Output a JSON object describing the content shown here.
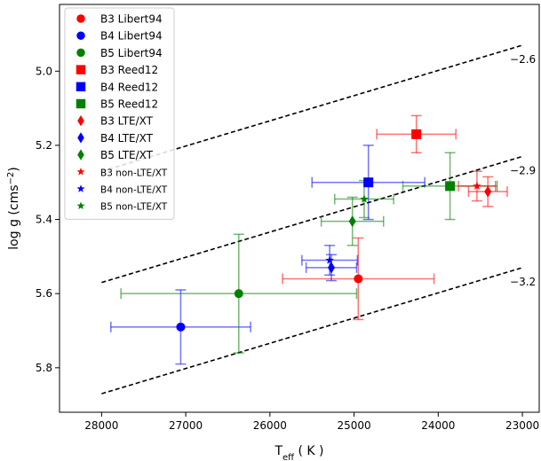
{
  "chart_data": {
    "type": "scatter",
    "xlabel": "T_eff ( K )",
    "ylabel": "log g (cms^-2)",
    "xlim": [
      28500,
      22800
    ],
    "ylim": [
      5.92,
      4.82
    ],
    "x_ticks": [
      28000,
      27000,
      26000,
      25000,
      24000,
      23000
    ],
    "y_ticks": [
      5.0,
      5.2,
      5.4,
      5.6,
      5.8
    ],
    "reverse_x": true,
    "reverse_y": true,
    "grid": false,
    "legend_position": "upper-left",
    "colors": {
      "B3": "#ff0000",
      "B4": "#0000ff",
      "B5": "#008000"
    },
    "series": [
      {
        "name": "B3 Libert94",
        "marker": "circle",
        "color": "#ff0000",
        "points": [
          {
            "x": 24950,
            "y": 5.56,
            "xerr": 900,
            "yerr": 0.11
          }
        ]
      },
      {
        "name": "B4 Libert94",
        "marker": "circle",
        "color": "#0000ff",
        "points": [
          {
            "x": 27060,
            "y": 5.69,
            "xerr": 830,
            "yerr": 0.1
          }
        ]
      },
      {
        "name": "B5 Libert94",
        "marker": "circle",
        "color": "#008000",
        "points": [
          {
            "x": 26370,
            "y": 5.6,
            "xerr": 1400,
            "yerr": 0.16
          }
        ]
      },
      {
        "name": "B3 Reed12",
        "marker": "square",
        "color": "#ff0000",
        "points": [
          {
            "x": 24260,
            "y": 5.17,
            "xerr": 470,
            "yerr": 0.05
          }
        ]
      },
      {
        "name": "B4 Reed12",
        "marker": "square",
        "color": "#0000ff",
        "points": [
          {
            "x": 24830,
            "y": 5.3,
            "xerr": 670,
            "yerr": 0.1
          }
        ]
      },
      {
        "name": "B5 Reed12",
        "marker": "square",
        "color": "#008000",
        "points": [
          {
            "x": 23860,
            "y": 5.31,
            "xerr": 560,
            "yerr": 0.09
          }
        ]
      },
      {
        "name": "B3 LTE/XT",
        "marker": "diamond",
        "color": "#ff0000",
        "points": [
          {
            "x": 23410,
            "y": 5.325,
            "xerr": 230,
            "yerr": 0.04
          }
        ]
      },
      {
        "name": "B4 LTE/XT",
        "marker": "diamond",
        "color": "#0000ff",
        "points": [
          {
            "x": 25270,
            "y": 5.53,
            "xerr": 300,
            "yerr": 0.035
          }
        ]
      },
      {
        "name": "B5 LTE/XT",
        "marker": "diamond",
        "color": "#008000",
        "points": [
          {
            "x": 25020,
            "y": 5.405,
            "xerr": 370,
            "yerr": 0.065
          }
        ]
      },
      {
        "name": "B3 non-LTE/XT",
        "marker": "star",
        "color": "#ff0000",
        "points": [
          {
            "x": 23540,
            "y": 5.31,
            "xerr": 220,
            "yerr": 0.04
          }
        ]
      },
      {
        "name": "B4 non-LTE/XT",
        "marker": "star",
        "color": "#0000ff",
        "points": [
          {
            "x": 25290,
            "y": 5.51,
            "xerr": 330,
            "yerr": 0.04
          }
        ]
      },
      {
        "name": "B5 non-LTE/XT",
        "marker": "star",
        "color": "#008000",
        "points": [
          {
            "x": 24880,
            "y": 5.345,
            "xerr": 350,
            "yerr": 0.05
          }
        ]
      }
    ],
    "reference_lines": [
      {
        "label": "−2.6",
        "x": [
          28000,
          23000
        ],
        "y": [
          5.27,
          4.93
        ]
      },
      {
        "label": "−2.9",
        "x": [
          28000,
          23000
        ],
        "y": [
          5.57,
          5.23
        ]
      },
      {
        "label": "−3.2",
        "x": [
          28000,
          23000
        ],
        "y": [
          5.87,
          5.53
        ]
      }
    ]
  }
}
